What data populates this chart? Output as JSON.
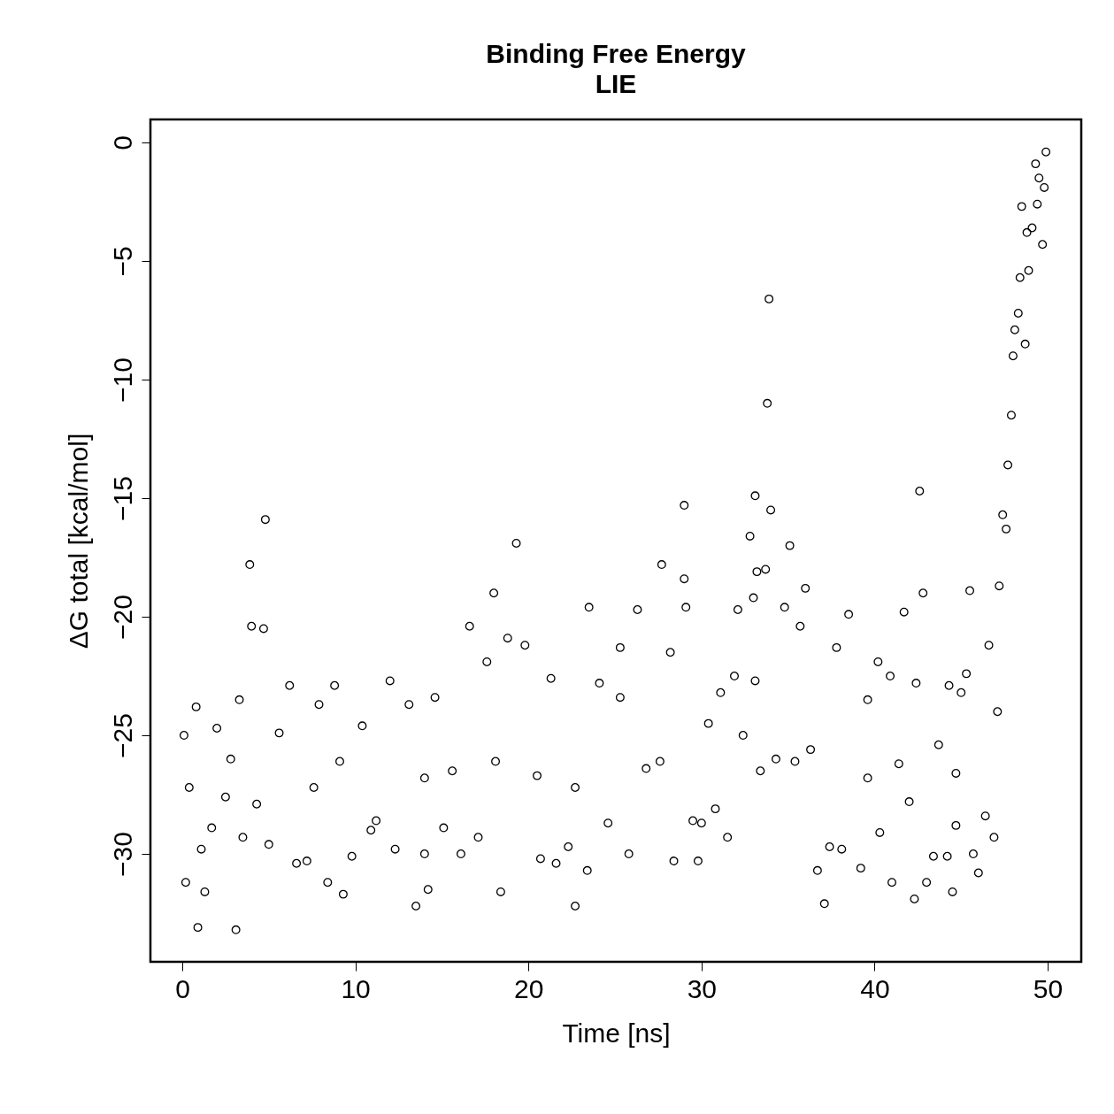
{
  "chart_data": {
    "type": "scatter",
    "title": "Binding Free Energy",
    "subtitle": "LIE",
    "xlabel": "Time [ns]",
    "ylabel": "ΔG total [kcal/mol]",
    "marker": "circle",
    "xlim": [
      -1.84,
      51.94
    ],
    "ylim": [
      -34.55,
      0.97
    ],
    "xticks": [
      0,
      10,
      20,
      30,
      40,
      50
    ],
    "yticks": [
      0,
      -5,
      -10,
      -15,
      -20,
      -25,
      -30
    ],
    "x": [
      0.1,
      0.2,
      0.4,
      0.8,
      0.9,
      1.1,
      1.3,
      1.7,
      2.0,
      2.5,
      2.8,
      3.1,
      3.3,
      3.5,
      3.9,
      4.0,
      4.3,
      4.7,
      4.8,
      5.0,
      5.6,
      6.2,
      6.6,
      7.2,
      7.6,
      7.9,
      8.4,
      8.8,
      9.1,
      9.3,
      9.8,
      10.4,
      10.9,
      11.2,
      12.0,
      12.3,
      13.1,
      13.5,
      14.0,
      14.0,
      14.2,
      14.6,
      15.1,
      15.6,
      16.1,
      16.6,
      17.1,
      17.6,
      18.0,
      18.1,
      18.4,
      18.8,
      19.3,
      19.8,
      20.5,
      20.7,
      21.3,
      21.6,
      22.3,
      22.7,
      22.7,
      23.4,
      23.5,
      24.1,
      24.6,
      25.3,
      25.3,
      25.8,
      26.3,
      26.8,
      27.6,
      27.7,
      28.2,
      28.4,
      29.0,
      29.0,
      29.1,
      29.5,
      29.8,
      30.0,
      30.4,
      30.8,
      31.1,
      31.5,
      31.9,
      32.1,
      32.4,
      32.8,
      33.0,
      33.1,
      33.1,
      33.2,
      33.4,
      33.7,
      33.9,
      33.8,
      34.0,
      34.3,
      34.8,
      35.1,
      35.4,
      35.7,
      36.0,
      36.3,
      36.7,
      37.1,
      37.4,
      37.8,
      38.1,
      38.5,
      39.2,
      39.6,
      39.6,
      40.2,
      40.3,
      40.9,
      41.0,
      41.4,
      41.7,
      42.0,
      42.3,
      42.4,
      42.6,
      42.8,
      43.0,
      43.4,
      43.7,
      44.2,
      44.3,
      44.5,
      44.7,
      44.7,
      45.0,
      45.3,
      45.5,
      45.7,
      46.0,
      46.4,
      46.6,
      46.9,
      47.1,
      47.2,
      47.4,
      47.6,
      47.7,
      47.9,
      48.0,
      48.1,
      48.3,
      48.4,
      48.5,
      48.7,
      48.8,
      48.9,
      49.1,
      49.3,
      49.4,
      49.5,
      49.7,
      49.8,
      49.9
    ],
    "series": [
      {
        "color": "#000000",
        "values": [
          -25.0,
          -31.2,
          -27.2,
          -23.8,
          -33.1,
          -29.8,
          -31.6,
          -28.9,
          -24.7,
          -27.6,
          -26.0,
          -33.2,
          -23.5,
          -29.3,
          -17.8,
          -20.4,
          -27.9,
          -20.5,
          -15.9,
          -29.6,
          -24.9,
          -22.9,
          -30.4,
          -30.3,
          -27.2,
          -23.7,
          -31.2,
          -22.9,
          -26.1,
          -31.7,
          -30.1,
          -24.6,
          -29.0,
          -28.6,
          -22.7,
          -29.8,
          -23.7,
          -32.2,
          -30.0,
          -26.8,
          -31.5,
          -23.4,
          -28.9,
          -26.5,
          -30.0,
          -20.4,
          -29.3,
          -21.9,
          -19.0,
          -26.1,
          -31.6,
          -20.9,
          -16.9,
          -21.2,
          -26.7,
          -30.2,
          -22.6,
          -30.4,
          -29.7,
          -32.2,
          -27.2,
          -30.7,
          -19.6,
          -22.8,
          -28.7,
          -23.4,
          -21.3,
          -30.0,
          -19.7,
          -26.4,
          -26.1,
          -17.8,
          -21.5,
          -30.3,
          -15.3,
          -18.4,
          -19.6,
          -28.6,
          -30.3,
          -28.7,
          -24.5,
          -28.1,
          -23.2,
          -29.3,
          -22.5,
          -19.7,
          -25.0,
          -16.6,
          -19.2,
          -14.9,
          -22.7,
          -18.1,
          -26.5,
          -18.0,
          -6.6,
          -11.0,
          -15.5,
          -26.0,
          -19.6,
          -17.0,
          -26.1,
          -20.4,
          -18.8,
          -25.6,
          -30.7,
          -32.1,
          -29.7,
          -21.3,
          -29.8,
          -19.9,
          -30.6,
          -23.5,
          -26.8,
          -21.9,
          -29.1,
          -22.5,
          -31.2,
          -26.2,
          -19.8,
          -27.8,
          -31.9,
          -22.8,
          -14.7,
          -19.0,
          -31.2,
          -30.1,
          -25.4,
          -30.1,
          -22.9,
          -31.6,
          -28.8,
          -26.6,
          -23.2,
          -22.4,
          -18.9,
          -30.0,
          -30.8,
          -28.4,
          -21.2,
          -29.3,
          -24.0,
          -18.7,
          -15.7,
          -16.3,
          -13.6,
          -11.5,
          -9.0,
          -7.9,
          -7.2,
          -5.7,
          -2.7,
          -8.5,
          -3.8,
          -5.4,
          -3.6,
          -0.9,
          -2.6,
          -1.5,
          -4.3,
          -1.9,
          -0.4
        ]
      }
    ]
  }
}
